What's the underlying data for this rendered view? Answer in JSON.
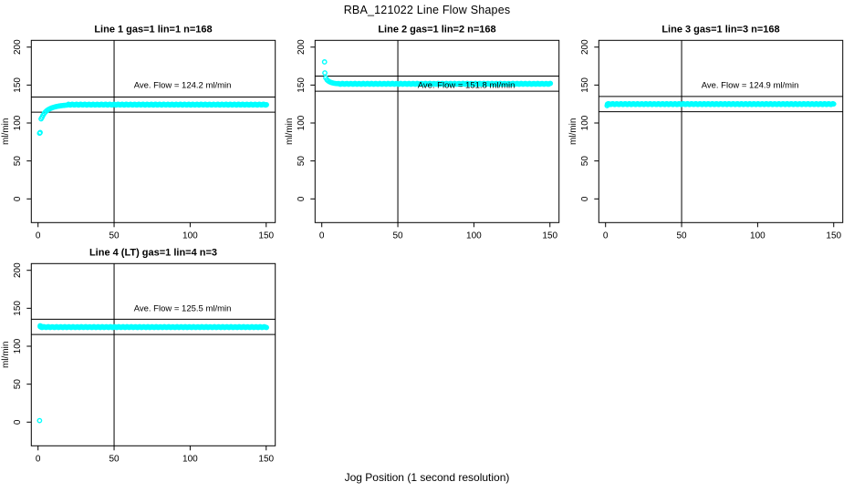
{
  "figure": {
    "title": "RBA_121022  Line Flow Shapes",
    "xlabel": "Jog Position (1 second resolution)",
    "ylabel": "ml/min",
    "background_color": "#FFFFFF",
    "point_color": "#00FFFF",
    "axis_color": "#000000"
  },
  "chart_data": {
    "type": "scatter",
    "title": "RBA_121022  Line Flow Shapes",
    "xlabel": "Jog Position (1 second resolution)",
    "ylabel": "ml/min",
    "x_ticks": [
      0,
      50,
      100,
      150
    ],
    "y_ticks": [
      0,
      50,
      100,
      150,
      200
    ],
    "x_axis_range": [
      -4.4,
      156
    ],
    "y_axis_range": [
      -7.2,
      208.9
    ],
    "grid": false,
    "marker": "open-circle",
    "panels": [
      {
        "title": "Line 1 gas=1 lin=1 n=168",
        "ave_flow": 124.2,
        "ave_label": "Ave. Flow =  124.2  ml/min",
        "n": 168,
        "ref_lines": [
          114.2,
          134.2
        ],
        "vline_x": 50,
        "annot_x": 95,
        "annot_y": 150,
        "transient": [
          [
            1,
            86.5
          ],
          [
            1.4,
            87.5
          ],
          [
            2,
            105.5
          ],
          [
            2.6,
            107.5
          ],
          [
            3.2,
            110
          ],
          [
            4,
            112.5
          ],
          [
            4.8,
            114.5
          ],
          [
            5.6,
            116
          ],
          [
            6.4,
            117.2
          ],
          [
            7.2,
            118.2
          ],
          [
            8,
            119
          ],
          [
            9,
            119.9
          ],
          [
            10,
            120.6
          ],
          [
            11,
            121.2
          ],
          [
            12,
            121.7
          ],
          [
            13,
            122.1
          ],
          [
            14,
            122.45
          ],
          [
            15,
            122.75
          ],
          [
            16,
            123
          ],
          [
            17,
            123.2
          ],
          [
            18,
            123.4
          ],
          [
            19,
            123.55
          ]
        ],
        "plateau": {
          "from": 20,
          "to": 150.5,
          "y": 124.2
        }
      },
      {
        "title": "Line 2 gas=1 lin=2 n=168",
        "ave_flow": 151.8,
        "ave_label": "Ave. Flow =  151.8  ml/min",
        "n": 168,
        "ref_lines": [
          141.8,
          161.8
        ],
        "vline_x": 50,
        "annot_x": 95,
        "annot_y": 150,
        "transient": [
          [
            1.8,
            180.5
          ],
          [
            2,
            166
          ],
          [
            2.6,
            159.5
          ],
          [
            3.4,
            157
          ],
          [
            4.2,
            155.5
          ],
          [
            5,
            154.4
          ],
          [
            6,
            153.5
          ],
          [
            7,
            152.9
          ],
          [
            8,
            152.4
          ],
          [
            9,
            152.1
          ],
          [
            10,
            151.9
          ]
        ],
        "plateau": {
          "from": 10.5,
          "to": 150.8,
          "y": 151.6
        }
      },
      {
        "title": "Line 3 gas=1 lin=3 n=168",
        "ave_flow": 124.9,
        "ave_label": "Ave. Flow =  124.9  ml/min",
        "n": 168,
        "ref_lines": [
          114.9,
          134.9
        ],
        "vline_x": 50,
        "annot_x": 95,
        "annot_y": 150,
        "transient": [
          [
            1,
            122.8
          ],
          [
            1.6,
            124.2
          ]
        ],
        "plateau": {
          "from": 1.2,
          "to": 150.5,
          "y": 124.9
        }
      },
      {
        "title": "Line 4 (LT) gas=1 lin=4 n=3",
        "ave_flow": 125.5,
        "ave_label": "Ave. Flow =  125.5  ml/min",
        "n": 3,
        "ref_lines": [
          115.5,
          135.5
        ],
        "vline_x": 50,
        "annot_x": 95,
        "annot_y": 150,
        "transient": [
          [
            1,
            2
          ],
          [
            1.4,
            127
          ],
          [
            2.2,
            126.3
          ]
        ],
        "plateau": {
          "from": 1.4,
          "to": 150.5,
          "y": 125.2
        }
      }
    ]
  }
}
